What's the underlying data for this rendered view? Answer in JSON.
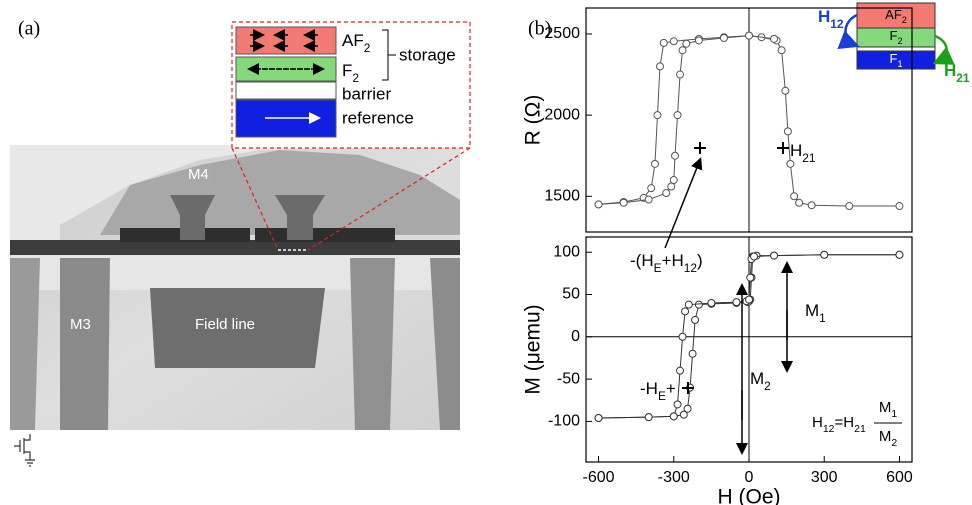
{
  "panel_a": {
    "label": "(a)",
    "image_labels": {
      "m4": "M4",
      "m3": "M3",
      "field_line": "Field line"
    },
    "inset": {
      "af": [
        "AF",
        "2"
      ],
      "f": [
        "F",
        "2"
      ],
      "storage": "storage",
      "barrier": "barrier",
      "reference": "reference"
    }
  },
  "panel_b": {
    "label": "(b)",
    "stack": {
      "af": [
        "AF",
        "2"
      ],
      "f2": [
        "F",
        "2"
      ],
      "f1": [
        "F",
        "1"
      ],
      "h12": [
        "H",
        "12"
      ],
      "h21": [
        "H",
        "21"
      ]
    },
    "annotations": {
      "he_h12": [
        "-(H",
        "E",
        "+H",
        "12",
        ")"
      ],
      "h21": [
        "H",
        "21"
      ],
      "m1": [
        "M",
        "1"
      ],
      "m2": [
        "M",
        "2"
      ],
      "he": [
        "-H",
        "E",
        "+"
      ],
      "formula": [
        "H",
        "12",
        "=H",
        "21"
      ],
      "numerator": [
        "M",
        "1"
      ],
      "denominator": [
        "M",
        "2"
      ]
    }
  },
  "chart_data": [
    {
      "type": "scatter",
      "y_label": "R (Ω)",
      "xlim": [
        -650,
        650
      ],
      "ylim": [
        1280,
        2660
      ],
      "yticks": [
        1500,
        2000,
        2500
      ],
      "reference_lines": {
        "x": [
          0
        ]
      },
      "series": [
        {
          "color": "#555555",
          "x": [
            600,
            400,
            250,
            200,
            180,
            165,
            155,
            145,
            130,
            110,
            50,
            0,
            -100,
            -200,
            -300,
            -340,
            -355,
            -365,
            -375,
            -390,
            -420,
            -500,
            -600
          ],
          "values": [
            1440,
            1440,
            1445,
            1460,
            1500,
            1700,
            1900,
            2150,
            2400,
            2460,
            2480,
            2490,
            2480,
            2470,
            2455,
            2445,
            2300,
            2000,
            1700,
            1550,
            1490,
            1465,
            1450
          ]
        },
        {
          "color": "#555555",
          "x": [
            -600,
            -500,
            -400,
            -330,
            -310,
            -300,
            -295,
            -285,
            -275,
            -265,
            -250,
            -200,
            -100,
            0,
            100
          ],
          "values": [
            1450,
            1460,
            1480,
            1520,
            1560,
            1600,
            1750,
            2000,
            2250,
            2400,
            2440,
            2460,
            2475,
            2490,
            2470
          ]
        }
      ]
    },
    {
      "type": "scatter",
      "x_label": "H (Oe)",
      "y_label": "M (μemu)",
      "xlim": [
        -650,
        650
      ],
      "ylim": [
        -148,
        118
      ],
      "xticks": [
        -600,
        -300,
        0,
        300,
        600
      ],
      "yticks": [
        -100,
        -50,
        0,
        50,
        100
      ],
      "reference_lines": {
        "x": [
          0
        ],
        "y": [
          0
        ]
      },
      "series": [
        {
          "color": "#333333",
          "x": [
            600,
            300,
            100,
            30,
            15,
            10,
            5,
            0,
            -5,
            -50,
            -150,
            -200,
            -215,
            -225,
            -235,
            -245,
            -260,
            -300,
            -400,
            -600
          ],
          "values": [
            97,
            97,
            96,
            96,
            95,
            70,
            44,
            42,
            41,
            40,
            39,
            38,
            20,
            -20,
            -60,
            -85,
            -92,
            -94,
            -95,
            -96
          ]
        },
        {
          "color": "#333333",
          "x": [
            -600,
            -400,
            -300,
            -285,
            -275,
            -265,
            -255,
            -240,
            -150,
            -50,
            -10,
            0,
            5,
            10,
            20,
            100,
            300,
            600
          ],
          "values": [
            -96,
            -95,
            -94,
            -80,
            -40,
            0,
            30,
            38,
            40,
            41,
            42,
            44,
            70,
            92,
            95,
            96,
            97,
            97
          ]
        }
      ]
    }
  ]
}
